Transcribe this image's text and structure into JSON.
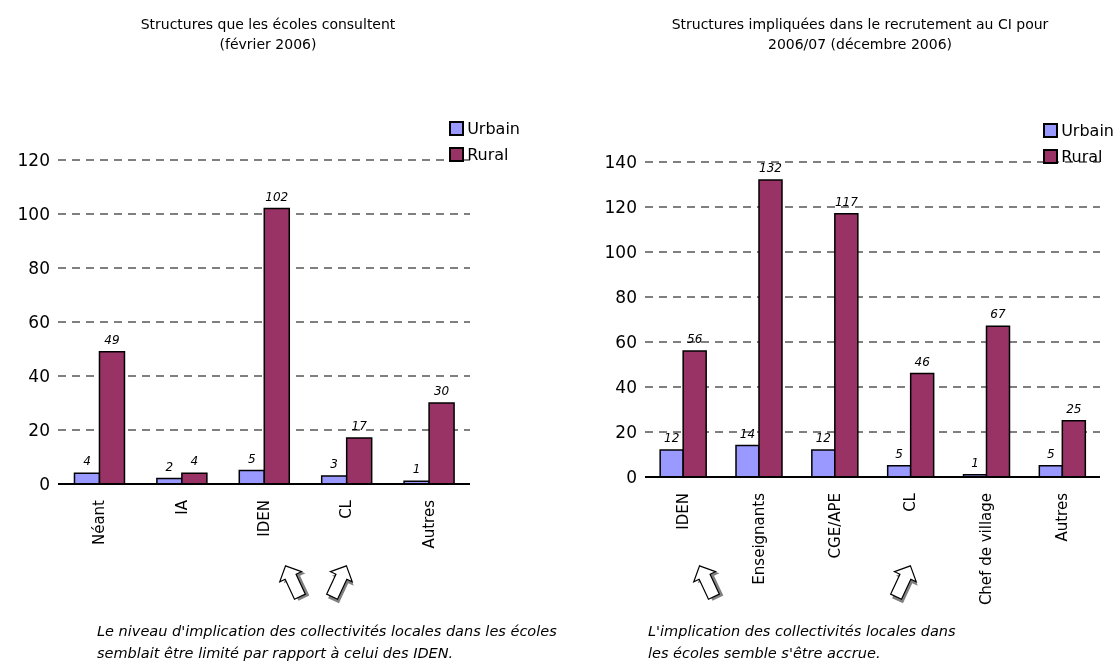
{
  "chart_data": [
    {
      "type": "bar",
      "title": "Structures que les écoles consultent (février 2006)",
      "categories": [
        "Néant",
        "IA",
        "IDEN",
        "CL",
        "Autres"
      ],
      "series": [
        {
          "name": "Urbain",
          "color": "#9999ff",
          "values": [
            4,
            2,
            5,
            3,
            1
          ]
        },
        {
          "name": "Rural",
          "color": "#993366",
          "values": [
            49,
            4,
            102,
            17,
            30
          ]
        }
      ],
      "ylim": [
        0,
        120
      ],
      "yticks": [
        0,
        20,
        40,
        60,
        80,
        100,
        120
      ],
      "grid": "y",
      "legend": "top right",
      "data_labels": true,
      "annotations": [
        "Le niveau d'implication des collectivités locales dans les écoles semblait être limité par rapport à celui des IDEN."
      ]
    },
    {
      "type": "bar",
      "title": "Structures impliquées dans le recrutement au CI pour 2006/07 (décembre 2006)",
      "categories": [
        "IDEN",
        "Enseignants",
        "CGE/APE",
        "CL",
        "Chef de village",
        "Autres"
      ],
      "series": [
        {
          "name": "Urbain",
          "color": "#9999ff",
          "values": [
            12,
            14,
            12,
            5,
            1,
            5
          ]
        },
        {
          "name": "Rural",
          "color": "#993366",
          "values": [
            56,
            132,
            117,
            46,
            67,
            25
          ]
        }
      ],
      "ylim": [
        0,
        140
      ],
      "yticks": [
        0,
        20,
        40,
        60,
        80,
        100,
        120,
        140
      ],
      "grid": "y",
      "legend": "top right",
      "data_labels": true,
      "annotations": [
        "L'implication des collectivités locales dans les écoles semble s'être accrue."
      ]
    }
  ]
}
